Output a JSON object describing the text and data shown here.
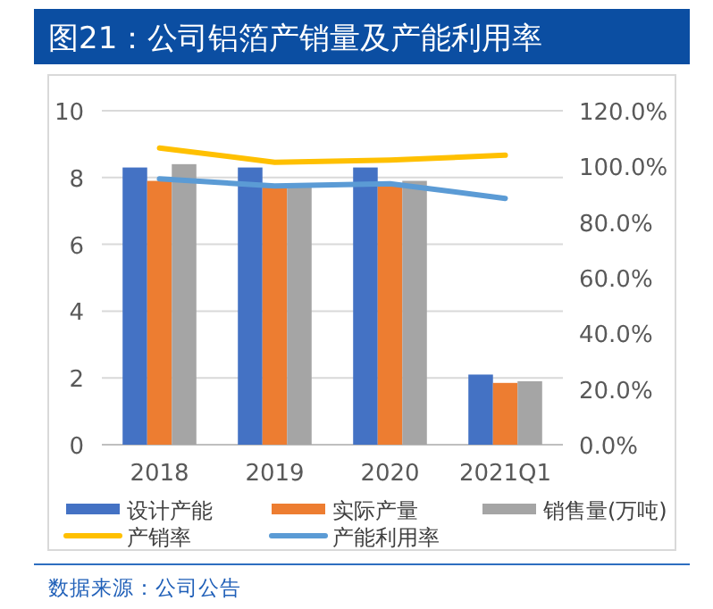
{
  "chart_data": {
    "type": "bar",
    "title": "图21：公司铝箔产销量及产能利用率",
    "categories": [
      "2018",
      "2019",
      "2020",
      "2021Q1"
    ],
    "series": [
      {
        "name": "设计产能",
        "color": "#4472c4",
        "values": [
          8.3,
          8.3,
          8.3,
          2.1
        ]
      },
      {
        "name": "实际产量",
        "color": "#ed7d31",
        "values": [
          7.9,
          7.8,
          7.8,
          1.85
        ]
      },
      {
        "name": "销售量(万吨)",
        "color": "#a5a5a5",
        "values": [
          8.4,
          7.8,
          7.9,
          1.9
        ]
      },
      {
        "name": "产销率",
        "type": "line",
        "axis": "y2",
        "color": "#ffc000",
        "values": [
          106.6,
          101.5,
          102.3,
          104
        ]
      },
      {
        "name": "产能利用率",
        "type": "line",
        "axis": "y2",
        "color": "#5b9bd5",
        "values": [
          95.5,
          93,
          93.8,
          88.5
        ]
      }
    ],
    "ylim": [
      0,
      10
    ],
    "yticks": [
      0,
      2,
      4,
      6,
      8,
      10
    ],
    "y2lim": [
      0,
      120
    ],
    "y2ticks": [
      {
        "value": 0,
        "label": "0.0%"
      },
      {
        "value": 20,
        "label": "20.0%"
      },
      {
        "value": 40,
        "label": "40.0%"
      },
      {
        "value": 60,
        "label": "60.0%"
      },
      {
        "value": 80,
        "label": "80.0%"
      },
      {
        "value": 100,
        "label": "100.0%"
      },
      {
        "value": 120,
        "label": "120.0%"
      }
    ],
    "grid": "y",
    "legend": "bottom",
    "annotations": [
      "数据来源：公司公告"
    ]
  }
}
